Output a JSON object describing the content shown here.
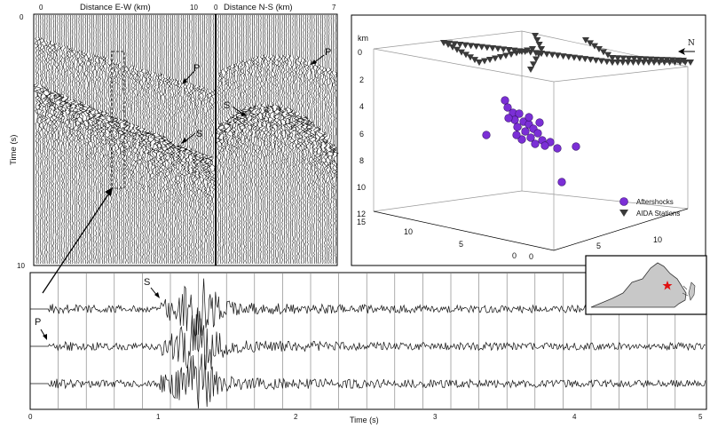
{
  "panel_a": {
    "x_axis_ew_label": "Distance E-W (km)",
    "x_axis_ns_label": "Distance N-S (km)",
    "y_axis_label": "Time (s)",
    "ew_ticks": [
      "0",
      "10"
    ],
    "ns_ticks": [
      "0",
      "7"
    ],
    "y_ticks": [
      "0",
      "10"
    ],
    "annotations": {
      "p_ew": "P",
      "s_ew": "S",
      "p_ns": "P",
      "s_ns": "S"
    }
  },
  "panel_b": {
    "unit_label": "km",
    "north_label": "N",
    "depth_ticks": [
      "0",
      "2",
      "4",
      "6",
      "8",
      "10",
      "12"
    ],
    "left_axis_ticks": [
      "15",
      "10",
      "5",
      "0"
    ],
    "front_axis_ticks": [
      "0",
      "5",
      "10"
    ],
    "legend": {
      "aftershocks": "Aftershocks",
      "stations": "AIDA Stations"
    },
    "colors": {
      "aftershocks": "#7b2fd6",
      "stations": "#3a3a3a"
    }
  },
  "panel_c": {
    "x_axis_label": "Time (s)",
    "x_ticks": [
      "0",
      "1",
      "2",
      "3",
      "4",
      "5"
    ],
    "annotations": {
      "p": "P",
      "s": "S"
    }
  },
  "inset_map": {
    "marker_color": "#e01010",
    "marker_icon": "star-icon"
  }
}
